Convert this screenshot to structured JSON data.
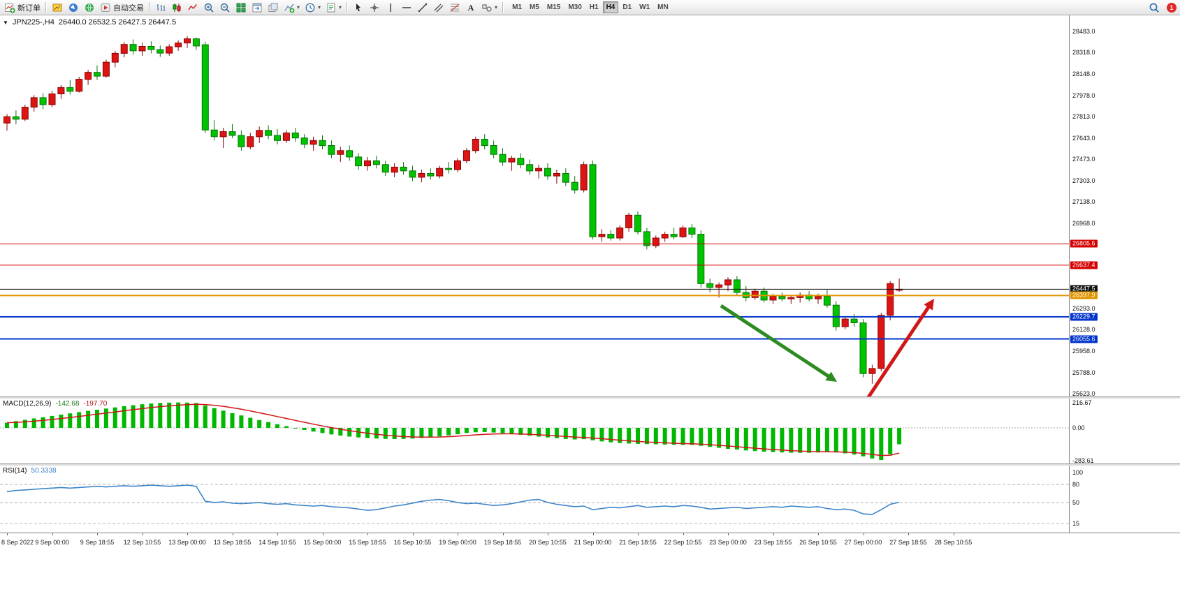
{
  "toolbar": {
    "new_order_label": "新订单",
    "autotrade_label": "自动交易",
    "text_tool_label": "A",
    "timeframes": [
      "M1",
      "M5",
      "M15",
      "M30",
      "H1",
      "H4",
      "D1",
      "W1",
      "MN"
    ],
    "active_timeframe": "H4",
    "notification_count": "1",
    "buttons": [
      {
        "name": "new-order",
        "icon": "new-order",
        "label": "新订单"
      },
      {
        "name": "sep1",
        "sep": true
      },
      {
        "name": "quotes",
        "icon": "quotes"
      },
      {
        "name": "navigator",
        "icon": "navigator"
      },
      {
        "name": "terminal",
        "icon": "terminal"
      },
      {
        "name": "autotrade",
        "icon": "autotrade",
        "label": "自动交易"
      },
      {
        "name": "sep2",
        "sep": true
      },
      {
        "name": "bar-chart",
        "icon": "bars"
      },
      {
        "name": "candle-chart",
        "icon": "candles"
      },
      {
        "name": "line-chart",
        "icon": "linechart"
      },
      {
        "name": "zoom-in",
        "icon": "zoom-in"
      },
      {
        "name": "zoom-out",
        "icon": "zoom-out"
      },
      {
        "name": "tile-windows",
        "icon": "tile"
      },
      {
        "name": "auto-arrange",
        "icon": "arrange1"
      },
      {
        "name": "cascade-windows",
        "icon": "arrange2"
      },
      {
        "name": "indicators",
        "icon": "indicators",
        "caret": true
      },
      {
        "name": "periods",
        "icon": "clock",
        "caret": true
      },
      {
        "name": "templates",
        "icon": "template",
        "caret": true
      },
      {
        "name": "sep3",
        "sep": true
      },
      {
        "name": "cursor",
        "icon": "cursor"
      },
      {
        "name": "crosshair",
        "icon": "crosshair"
      },
      {
        "name": "vertical-line",
        "icon": "vline"
      },
      {
        "name": "horizontal-line",
        "icon": "hline"
      },
      {
        "name": "trendline",
        "icon": "trendline"
      },
      {
        "name": "equidistant-channel",
        "icon": "channel"
      },
      {
        "name": "fibonacci",
        "icon": "fibo"
      },
      {
        "name": "text-tool",
        "icon": "text"
      },
      {
        "name": "arrows-tool",
        "icon": "shapes",
        "caret": true
      },
      {
        "name": "sep4",
        "sep": true
      }
    ]
  },
  "chart": {
    "symbol_period": "JPN225-,H4",
    "ohlc_text": "26440.0 26532.5 26427.5 26447.5",
    "collapse_glyph": "▼",
    "price_ticks": [
      "28483.0",
      "28318.0",
      "28148.0",
      "27978.0",
      "27813.0",
      "27643.0",
      "27473.0",
      "27303.0",
      "27138.0",
      "26968.0",
      "26293.0",
      "26128.0",
      "25958.0",
      "25788.0",
      "25623.0"
    ],
    "price_tags": [
      {
        "label": "26805.6",
        "value": 26805.6,
        "color": "#d40000"
      },
      {
        "label": "26637.4",
        "value": 26637.4,
        "color": "#d40000"
      },
      {
        "label": "26447.5",
        "value": 26447.5,
        "color": "#111111"
      },
      {
        "label": "26397.9",
        "value": 26397.9,
        "color": "#e09500"
      },
      {
        "label": "26229.7",
        "value": 26229.7,
        "color": "#0033cc"
      },
      {
        "label": "26055.6",
        "value": 26055.6,
        "color": "#0033cc"
      }
    ]
  },
  "macd": {
    "title_label": "MACD(12,26,9)",
    "value_main": "-142.68",
    "value_signal": "-197.70",
    "axis_labels": [
      {
        "label": "216.67",
        "value": 216.67
      },
      {
        "label": "0.00",
        "value": 0
      },
      {
        "label": "-283.61",
        "value": -283.61
      }
    ]
  },
  "rsi": {
    "title_label": "RSI(14)",
    "value": "50.3338",
    "axis_labels": [
      {
        "label": "100",
        "value": 100
      },
      {
        "label": "80",
        "value": 80
      },
      {
        "label": "50",
        "value": 50
      },
      {
        "label": "15",
        "value": 15
      }
    ],
    "levels": [
      80,
      50,
      15
    ]
  },
  "chart_data": {
    "type": "candlestick",
    "symbol": "JPN225-",
    "timeframe": "H4",
    "current_ohlc": {
      "open": 26440.0,
      "high": 26532.5,
      "low": 26427.5,
      "close": 26447.5
    },
    "price_range": [
      25623.0,
      28483.0
    ],
    "up_color": "#dd1414",
    "down_color": "#00c400",
    "candles": [
      [
        27760,
        27830,
        27700,
        27810
      ],
      [
        27810,
        27860,
        27750,
        27790
      ],
      [
        27790,
        27905,
        27775,
        27885
      ],
      [
        27885,
        27980,
        27850,
        27960
      ],
      [
        27960,
        27995,
        27870,
        27905
      ],
      [
        27905,
        28015,
        27885,
        27990
      ],
      [
        27990,
        28060,
        27950,
        28040
      ],
      [
        28040,
        28100,
        27985,
        28010
      ],
      [
        28010,
        28125,
        28000,
        28105
      ],
      [
        28105,
        28180,
        28060,
        28160
      ],
      [
        28160,
        28215,
        28100,
        28130
      ],
      [
        28130,
        28260,
        28118,
        28240
      ],
      [
        28240,
        28330,
        28200,
        28310
      ],
      [
        28310,
        28400,
        28278,
        28380
      ],
      [
        28380,
        28420,
        28300,
        28330
      ],
      [
        28330,
        28395,
        28290,
        28365
      ],
      [
        28365,
        28405,
        28310,
        28340
      ],
      [
        28340,
        28372,
        28282,
        28312
      ],
      [
        28312,
        28382,
        28292,
        28362
      ],
      [
        28362,
        28412,
        28330,
        28392
      ],
      [
        28392,
        28445,
        28352,
        28425
      ],
      [
        28425,
        28435,
        28338,
        28368
      ],
      [
        28378,
        28402,
        27682,
        27705
      ],
      [
        27705,
        27782,
        27622,
        27652
      ],
      [
        27652,
        27722,
        27562,
        27692
      ],
      [
        27692,
        27752,
        27642,
        27662
      ],
      [
        27662,
        27702,
        27542,
        27572
      ],
      [
        27572,
        27682,
        27552,
        27652
      ],
      [
        27652,
        27732,
        27602,
        27702
      ],
      [
        27702,
        27742,
        27632,
        27662
      ],
      [
        27662,
        27712,
        27592,
        27622
      ],
      [
        27622,
        27702,
        27602,
        27682
      ],
      [
        27682,
        27722,
        27612,
        27642
      ],
      [
        27642,
        27672,
        27562,
        27592
      ],
      [
        27592,
        27652,
        27542,
        27622
      ],
      [
        27622,
        27662,
        27552,
        27582
      ],
      [
        27582,
        27622,
        27482,
        27512
      ],
      [
        27512,
        27572,
        27452,
        27542
      ],
      [
        27542,
        27582,
        27462,
        27492
      ],
      [
        27492,
        27522,
        27392,
        27422
      ],
      [
        27422,
        27492,
        27382,
        27462
      ],
      [
        27462,
        27502,
        27402,
        27432
      ],
      [
        27432,
        27462,
        27342,
        27372
      ],
      [
        27372,
        27442,
        27332,
        27412
      ],
      [
        27412,
        27452,
        27352,
        27382
      ],
      [
        27382,
        27422,
        27302,
        27332
      ],
      [
        27332,
        27392,
        27292,
        27362
      ],
      [
        27362,
        27402,
        27312,
        27342
      ],
      [
        27342,
        27422,
        27322,
        27402
      ],
      [
        27402,
        27452,
        27362,
        27392
      ],
      [
        27392,
        27482,
        27372,
        27462
      ],
      [
        27462,
        27562,
        27442,
        27542
      ],
      [
        27542,
        27652,
        27522,
        27632
      ],
      [
        27632,
        27672,
        27552,
        27582
      ],
      [
        27582,
        27622,
        27482,
        27512
      ],
      [
        27512,
        27562,
        27422,
        27452
      ],
      [
        27452,
        27502,
        27382,
        27482
      ],
      [
        27482,
        27522,
        27402,
        27432
      ],
      [
        27432,
        27472,
        27352,
        27382
      ],
      [
        27382,
        27432,
        27322,
        27402
      ],
      [
        27402,
        27442,
        27312,
        27342
      ],
      [
        27342,
        27392,
        27282,
        27362
      ],
      [
        27362,
        27402,
        27262,
        27292
      ],
      [
        27292,
        27342,
        27202,
        27232
      ],
      [
        27232,
        27455,
        27212,
        27432
      ],
      [
        27432,
        27462,
        26842,
        26862
      ],
      [
        26862,
        26922,
        26822,
        26882
      ],
      [
        26882,
        26912,
        26832,
        26852
      ],
      [
        26852,
        26952,
        26832,
        26932
      ],
      [
        26932,
        27052,
        26902,
        27032
      ],
      [
        27032,
        27062,
        26882,
        26902
      ],
      [
        26902,
        26932,
        26762,
        26792
      ],
      [
        26792,
        26872,
        26772,
        26852
      ],
      [
        26852,
        26902,
        26822,
        26882
      ],
      [
        26882,
        26932,
        26842,
        26862
      ],
      [
        26862,
        26952,
        26852,
        26932
      ],
      [
        26932,
        26962,
        26852,
        26882
      ],
      [
        26882,
        26912,
        26462,
        26492
      ],
      [
        26492,
        26532,
        26422,
        26462
      ],
      [
        26462,
        26502,
        26382,
        26482
      ],
      [
        26482,
        26542,
        26432,
        26522
      ],
      [
        26522,
        26552,
        26402,
        26422
      ],
      [
        26422,
        26472,
        26352,
        26382
      ],
      [
        26382,
        26452,
        26362,
        26432
      ],
      [
        26432,
        26462,
        26342,
        26362
      ],
      [
        26362,
        26412,
        26332,
        26392
      ],
      [
        26392,
        26422,
        26352,
        26372
      ],
      [
        26372,
        26402,
        26332,
        26382
      ],
      [
        26382,
        26422,
        26342,
        26402
      ],
      [
        26402,
        26432,
        26352,
        26372
      ],
      [
        26372,
        26412,
        26332,
        26392
      ],
      [
        26392,
        26442,
        26302,
        26322
      ],
      [
        26322,
        26352,
        26122,
        26152
      ],
      [
        26152,
        26232,
        26132,
        26212
      ],
      [
        26212,
        26252,
        26152,
        26182
      ],
      [
        26182,
        26212,
        25752,
        25782
      ],
      [
        25782,
        25852,
        25702,
        25822
      ],
      [
        25822,
        26262,
        25802,
        26242
      ],
      [
        26242,
        26512,
        26202,
        26492
      ],
      [
        26440,
        26532.5,
        26427.5,
        26447.5
      ]
    ],
    "hlines": [
      {
        "value": 26805.6,
        "color": "#d40000",
        "width": 1
      },
      {
        "value": 26637.4,
        "color": "#d40000",
        "width": 1
      },
      {
        "value": 26447.5,
        "color": "#111111",
        "width": 1
      },
      {
        "value": 26397.9,
        "color": "#e09500",
        "width": 2
      },
      {
        "value": 26229.7,
        "color": "#0033cc",
        "width": 2
      },
      {
        "value": 26055.6,
        "color": "#0033cc",
        "width": 2
      }
    ],
    "arrows": [
      {
        "name": "green-down-arrow",
        "color": "#2e8b22",
        "from": [
          1032,
          416
        ],
        "to": [
          1198,
          525
        ]
      },
      {
        "name": "red-up-arrow",
        "color": "#d01818",
        "from": [
          1243,
          547
        ],
        "to": [
          1337,
          406
        ]
      }
    ],
    "macd": {
      "params": "12,26,9",
      "main_value": -142.68,
      "signal_value": -197.7,
      "axis_range": [
        216.67,
        -283.61
      ],
      "values": [
        45,
        58,
        70,
        82,
        93,
        104,
        115,
        126,
        137,
        148,
        158,
        168,
        178,
        188,
        197,
        205,
        212,
        217,
        220,
        221,
        220,
        216,
        195,
        172,
        150,
        128,
        108,
        88,
        68,
        50,
        32,
        15,
        -2,
        -18,
        -32,
        -45,
        -57,
        -67,
        -76,
        -83,
        -89,
        -93,
        -96,
        -97,
        -96,
        -93,
        -88,
        -82,
        -74,
        -65,
        -55,
        -45,
        -38,
        -36,
        -40,
        -46,
        -53,
        -60,
        -68,
        -76,
        -83,
        -90,
        -96,
        -101,
        -98,
        -108,
        -118,
        -126,
        -132,
        -136,
        -139,
        -141,
        -143,
        -145,
        -147,
        -148,
        -148,
        -156,
        -165,
        -174,
        -182,
        -189,
        -196,
        -202,
        -207,
        -211,
        -214,
        -216,
        -217,
        -216,
        -214,
        -212,
        -214,
        -222,
        -232,
        -248,
        -266,
        -280,
        -230,
        -142.68
      ]
    },
    "rsi": {
      "period": 14,
      "current": 50.3338,
      "values": [
        68,
        70,
        71,
        72,
        73,
        74,
        75,
        74,
        75,
        76,
        77,
        76,
        77,
        78,
        77,
        78,
        79,
        78,
        77,
        78,
        79,
        77,
        52,
        50,
        51,
        49,
        48,
        49,
        50,
        48,
        47,
        48,
        46,
        45,
        44,
        45,
        43,
        42,
        41,
        39,
        37,
        38,
        41,
        44,
        46,
        49,
        52,
        54,
        55,
        53,
        50,
        48,
        49,
        47,
        45,
        46,
        48,
        51,
        54,
        55,
        50,
        47,
        45,
        43,
        44,
        38,
        40,
        42,
        41,
        43,
        45,
        42,
        43,
        44,
        43,
        45,
        44,
        42,
        39,
        40,
        41,
        42,
        40,
        41,
        42,
        43,
        42,
        44,
        43,
        42,
        43,
        40,
        38,
        39,
        37,
        31,
        30,
        38,
        47,
        50.33
      ]
    },
    "time_labels": [
      "8 Sep 2022",
      "9 Sep 00:00",
      "9 Sep 18:55",
      "12 Sep 10:55",
      "13 Sep 00:00",
      "13 Sep 18:55",
      "14 Sep 10:55",
      "15 Sep 00:00",
      "15 Sep 18:55",
      "16 Sep 10:55",
      "19 Sep 00:00",
      "19 Sep 18:55",
      "20 Sep 10:55",
      "21 Sep 00:00",
      "21 Sep 18:55",
      "22 Sep 10:55",
      "23 Sep 00:00",
      "23 Sep 18:55",
      "26 Sep 10:55",
      "27 Sep 00:00",
      "27 Sep 18:55",
      "28 Sep 10:55"
    ]
  }
}
